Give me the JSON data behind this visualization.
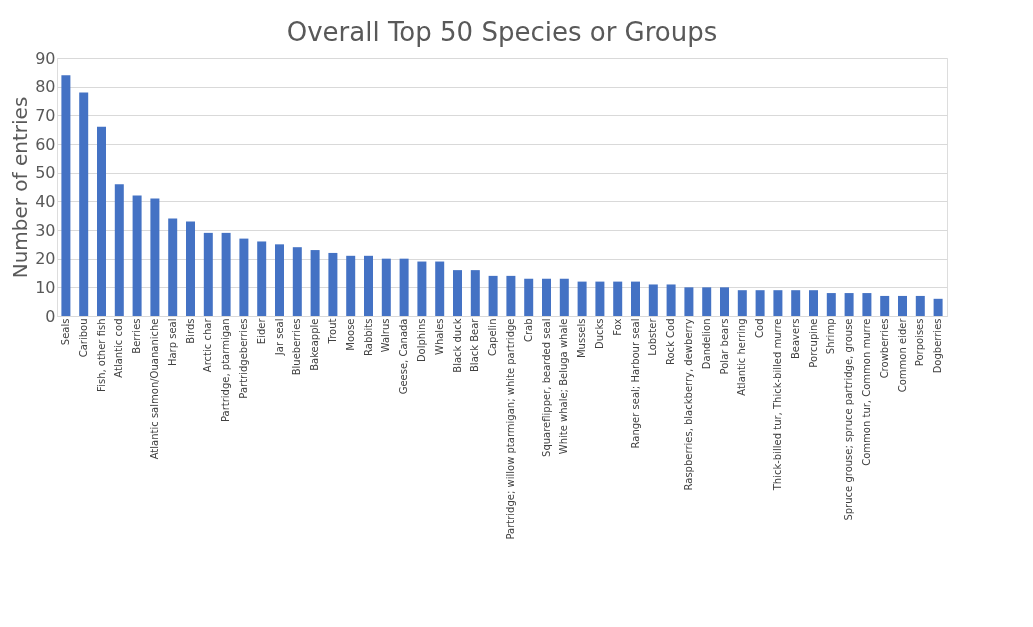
{
  "chart_data": {
    "type": "bar",
    "title": "Overall Top 50 Species or Groups",
    "ylabel": "Number of entries",
    "categories": [
      "Seals",
      "Caribou",
      "Fish, other fish",
      "Atlantic cod",
      "Berries",
      "Atlantic salmon/Ouananiche",
      "Harp seal",
      "Birds",
      "Arctic char",
      "Partridge, ptarmigan",
      "Partridgeberries",
      "Eider",
      "Jar seal",
      "Blueberries",
      "Bakeapple",
      "Trout",
      "Moose",
      "Rabbits",
      "Walrus",
      "Geese, Canada",
      "Dolphins",
      "Whales",
      "Black duck",
      "Black Bear",
      "Capelin",
      "Partridge; willow ptarmigan; white partridge",
      "Crab",
      "Squareflipper, bearded seal",
      "White whale; Beluga whale",
      "Mussels",
      "Ducks",
      "Fox",
      "Ranger seal; Harbour seal",
      "Lobster",
      "Rock Cod",
      "Raspberries, blackberry, dewberry",
      "Dandelion",
      "Polar bears",
      "Atlantic herring",
      "Cod",
      "Thick-billed tur, Thick-billed murre",
      "Beavers",
      "Porcupine",
      "Shrimp",
      "Spruce grouse; spruce partridge, grouse",
      "Common tur, Common murre",
      "Crowberries",
      "Common eider",
      "Porpoises",
      "Dogberries"
    ],
    "values": [
      84,
      78,
      66,
      46,
      42,
      41,
      34,
      33,
      29,
      29,
      27,
      26,
      25,
      24,
      23,
      22,
      21,
      21,
      20,
      20,
      19,
      19,
      16,
      16,
      14,
      14,
      13,
      13,
      13,
      12,
      12,
      12,
      12,
      11,
      11,
      10,
      10,
      10,
      9,
      9,
      9,
      9,
      9,
      8,
      8,
      8,
      7,
      7,
      7,
      6
    ],
    "color": "#4472c4",
    "ylim": [
      0,
      90
    ],
    "yticks": [
      0,
      10,
      20,
      30,
      40,
      50,
      60,
      70,
      80,
      90
    ],
    "grid": "y"
  }
}
